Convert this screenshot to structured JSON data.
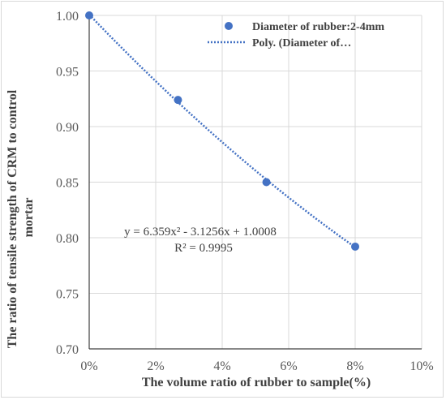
{
  "chart_data": {
    "type": "scatter",
    "xlabel": "The volume ratio of rubber to sample(%)",
    "ylabel": "The ratio of tensile strength of CRM to control mortar",
    "xlim": [
      0,
      0.1
    ],
    "ylim": [
      0.7,
      1.0
    ],
    "x_ticks": [
      "0%",
      "2%",
      "4%",
      "6%",
      "8%",
      "10%"
    ],
    "y_ticks": [
      "0.70",
      "0.75",
      "0.80",
      "0.85",
      "0.90",
      "0.95",
      "1.00"
    ],
    "grid": true,
    "legend_position": "top-right",
    "series": [
      {
        "name": "Diameter of rubber:2-4mm",
        "marker": "circle",
        "color": "#4472C4",
        "points": [
          {
            "x": 0.0,
            "y": 1.0
          },
          {
            "x": 0.0267,
            "y": 0.924
          },
          {
            "x": 0.0533,
            "y": 0.85
          },
          {
            "x": 0.08,
            "y": 0.792
          }
        ]
      }
    ],
    "trendline": {
      "name": "Poly. (Diameter of…",
      "type": "polynomial",
      "coefficients": {
        "a": 6.359,
        "b": -3.1256,
        "c": 1.0008
      },
      "x_range": [
        0,
        0.08
      ],
      "color": "#4472C4",
      "style": "dotted"
    },
    "annotations": {
      "equation": "y = 6.359x² - 3.1256x + 1.0008",
      "r_squared": "R² = 0.9995"
    }
  }
}
